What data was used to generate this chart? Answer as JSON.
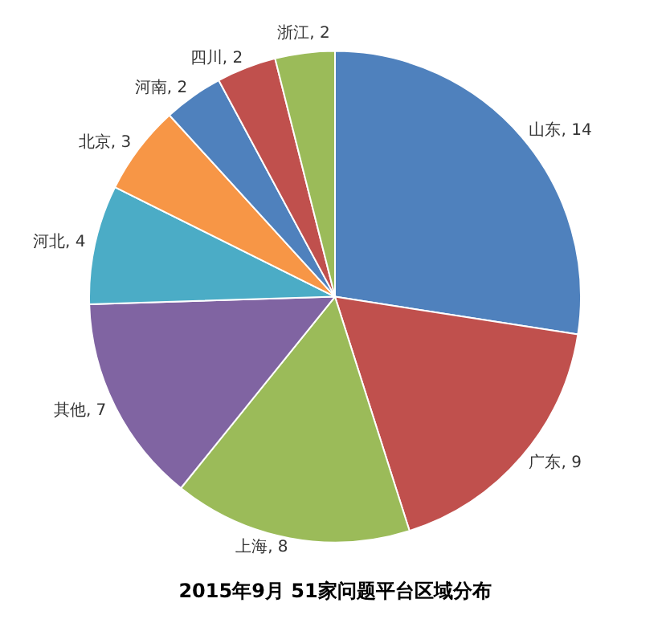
{
  "chart_data": {
    "type": "pie",
    "title": "2015年9月 51家问题平台区域分布",
    "categories": [
      "山东",
      "广东",
      "上海",
      "其他",
      "河北",
      "北京",
      "河南",
      "四川",
      "浙江"
    ],
    "values": [
      14,
      9,
      8,
      7,
      4,
      3,
      2,
      2,
      2
    ],
    "value_labels": [
      ", 14",
      ", 9",
      ", 8",
      ", 7",
      ", 4",
      ", 3",
      ", 2",
      ", 2",
      ", 2"
    ],
    "colors": [
      "#4f81bd",
      "#c0504d",
      "#9bbb59",
      "#8064a2",
      "#4bacc6",
      "#f79646",
      "#4f81bd",
      "#c0504d",
      "#9bbb59"
    ],
    "legend": false
  }
}
